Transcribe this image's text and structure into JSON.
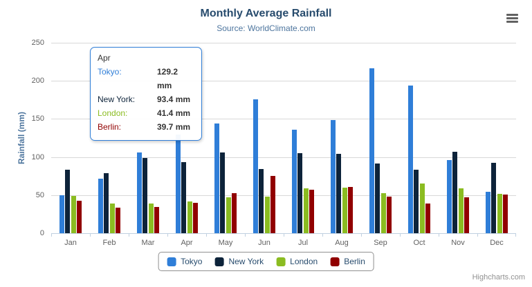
{
  "chart_data": {
    "type": "bar",
    "title": "Monthly Average Rainfall",
    "subtitle": "Source: WorldClimate.com",
    "xlabel": "",
    "ylabel": "Rainfall (mm)",
    "ylim": [
      0,
      250
    ],
    "ytick_interval": 50,
    "grid": true,
    "legend_position": "bottom",
    "categories": [
      "Jan",
      "Feb",
      "Mar",
      "Apr",
      "May",
      "Jun",
      "Jul",
      "Aug",
      "Sep",
      "Oct",
      "Nov",
      "Dec"
    ],
    "series": [
      {
        "name": "Tokyo",
        "color": "#2f7ed8",
        "values": [
          49.9,
          71.5,
          106.4,
          129.2,
          144.0,
          176.0,
          135.6,
          148.5,
          216.4,
          194.1,
          95.6,
          54.4
        ]
      },
      {
        "name": "New York",
        "color": "#0d233a",
        "values": [
          83.6,
          78.8,
          98.5,
          93.4,
          106.0,
          84.5,
          105.0,
          104.3,
          91.2,
          83.5,
          106.6,
          92.3
        ]
      },
      {
        "name": "London",
        "color": "#8bbc21",
        "values": [
          48.9,
          38.8,
          39.3,
          41.4,
          47.0,
          48.3,
          59.0,
          59.6,
          52.4,
          65.2,
          59.3,
          51.2
        ]
      },
      {
        "name": "Berlin",
        "color": "#910000",
        "values": [
          42.4,
          33.2,
          34.5,
          39.7,
          52.6,
          75.5,
          57.4,
          60.4,
          47.6,
          39.1,
          46.8,
          51.1
        ]
      }
    ]
  },
  "tooltip": {
    "header": "Apr",
    "rows": [
      {
        "name": "Tokyo",
        "value": "129.2 mm",
        "color": "#2f7ed8"
      },
      {
        "name": "New York",
        "value": "93.4 mm",
        "color": "#0d233a"
      },
      {
        "name": "London",
        "value": "41.4 mm",
        "color": "#8bbc21"
      },
      {
        "name": "Berlin",
        "value": "39.7 mm",
        "color": "#910000"
      }
    ]
  },
  "menu": {
    "icon": "hamburger-menu-icon"
  },
  "credits": "Highcharts.com",
  "theme": {
    "title_color": "#274b6d",
    "subtitle_color": "#4d759e",
    "axis_title_color": "#4d759e",
    "axis_label_color": "#606060",
    "grid_color": "#d8d8d8",
    "axis_line_color": "#c0d0e0",
    "legend_text_color": "#274b6d",
    "legend_border_color": "#909090",
    "tooltip_border_color": "#2f7ed8",
    "tooltip_text_color": "#333333",
    "credits_color": "#909090",
    "menu_icon_color": "#616161"
  }
}
